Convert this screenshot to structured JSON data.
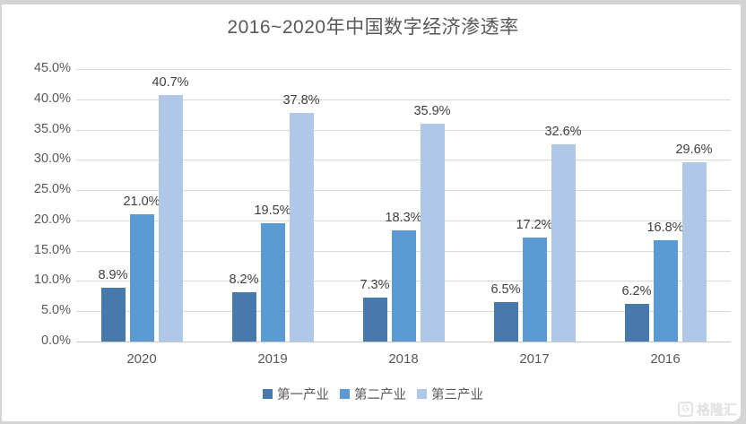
{
  "chart_data": {
    "type": "bar",
    "title": "2016~2020年中国数字经济渗透率",
    "categories": [
      "2020",
      "2019",
      "2018",
      "2017",
      "2016"
    ],
    "series": [
      {
        "name": "第一产业",
        "color": "#4879ac",
        "values": [
          8.9,
          8.2,
          7.3,
          6.5,
          6.2
        ]
      },
      {
        "name": "第二产业",
        "color": "#5b9bd5",
        "values": [
          21.0,
          19.5,
          18.3,
          17.2,
          16.8
        ]
      },
      {
        "name": "第三产业",
        "color": "#afc8e8",
        "values": [
          40.7,
          37.8,
          35.9,
          32.6,
          29.6
        ]
      }
    ],
    "data_labels": [
      [
        "8.9%",
        "8.2%",
        "7.3%",
        "6.5%",
        "6.2%"
      ],
      [
        "21.0%",
        "19.5%",
        "18.3%",
        "17.2%",
        "16.8%"
      ],
      [
        "40.7%",
        "37.8%",
        "35.9%",
        "32.6%",
        "29.6%"
      ]
    ],
    "xlabel": "",
    "ylabel": "",
    "ylim": [
      0,
      45
    ],
    "ytick_step": 5,
    "ytick_labels": [
      "0.0%",
      "5.0%",
      "10.0%",
      "15.0%",
      "20.0%",
      "25.0%",
      "30.0%",
      "35.0%",
      "40.0%",
      "45.0%"
    ],
    "grid": true,
    "legend_position": "bottom",
    "legend_entries": [
      "第一产业",
      "第二产业",
      "第三产业"
    ]
  },
  "watermark": {
    "logo_letter": "G",
    "text": "格隆汇"
  }
}
